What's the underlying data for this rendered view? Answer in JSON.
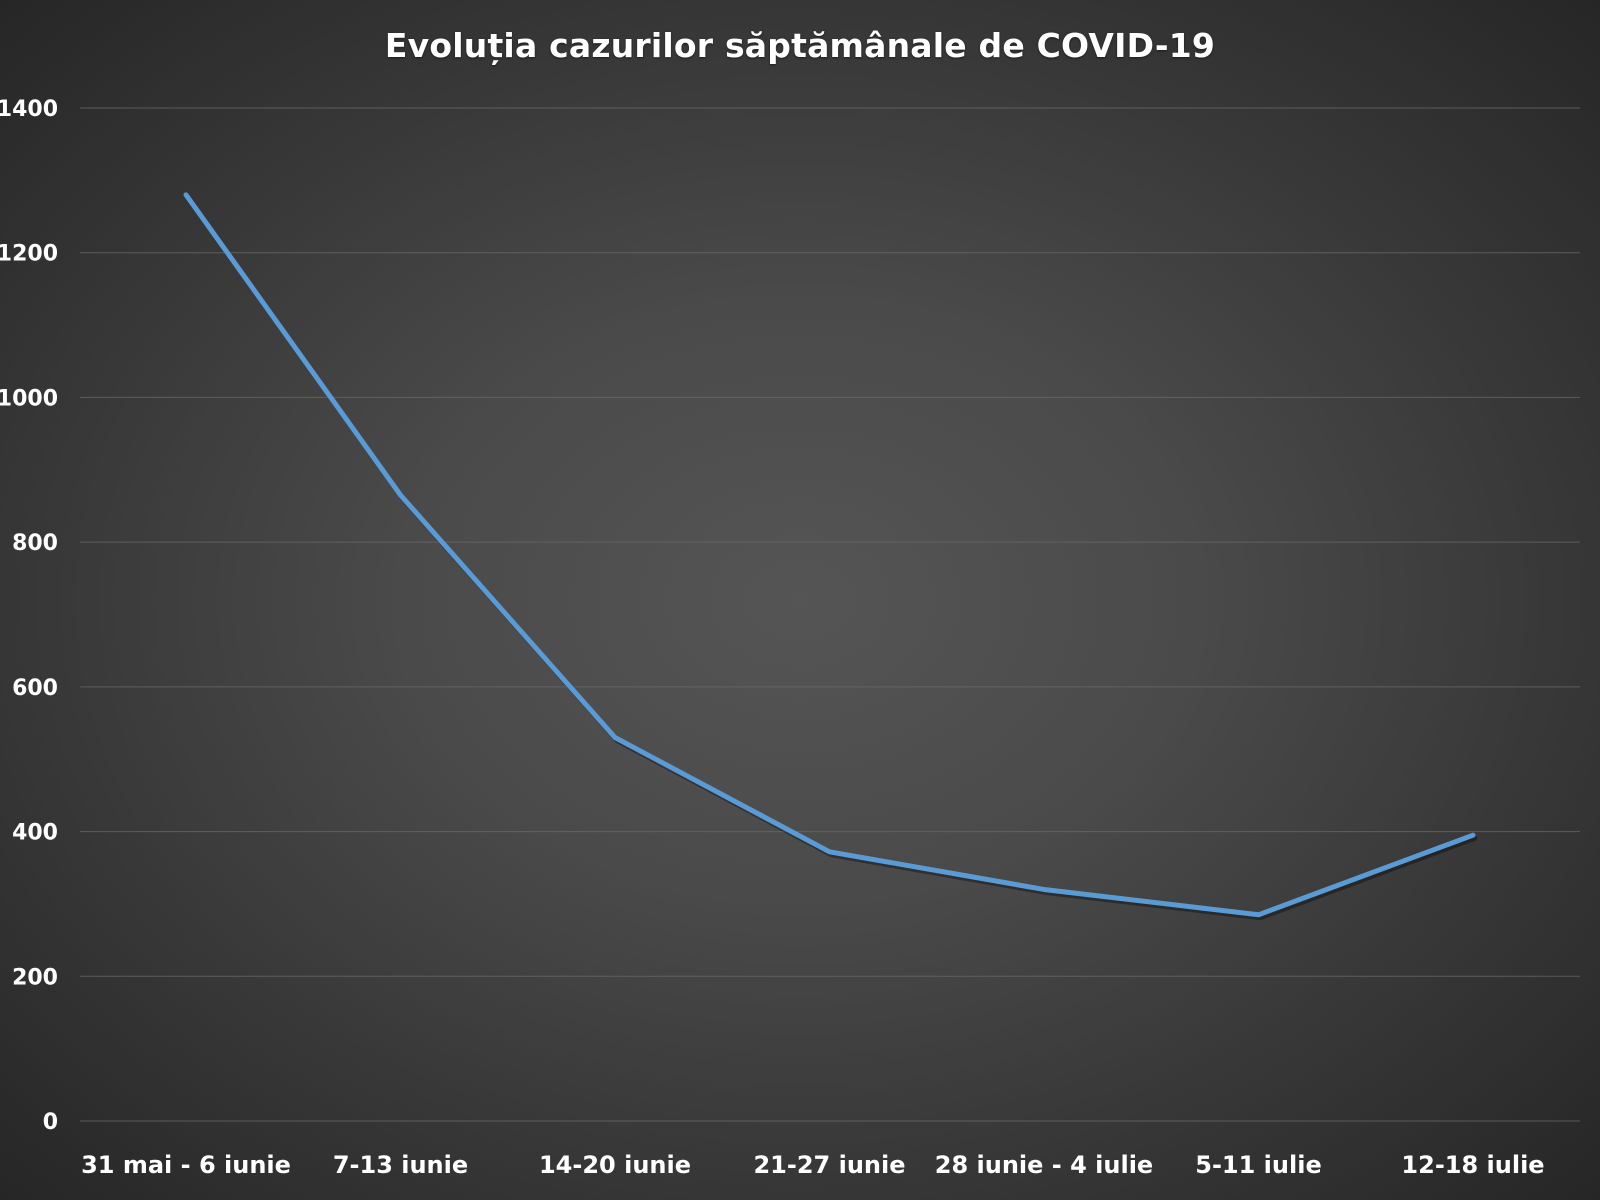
{
  "chart_data": {
    "type": "line",
    "title": "Evoluția cazurilor săptămânale de COVID-19",
    "xlabel": "",
    "ylabel": "",
    "categories": [
      "31 mai - 6 iunie",
      "7-13 iunie",
      "14-20 iunie",
      "21-27 iunie",
      "28 iunie - 4 iulie",
      "5-11 iulie",
      "12-18 iulie"
    ],
    "values": [
      1280,
      865,
      530,
      372,
      320,
      285,
      395
    ],
    "ylim": [
      0,
      1400
    ],
    "yticks": [
      0,
      200,
      400,
      600,
      800,
      1000,
      1200,
      1400
    ],
    "grid": true,
    "legend": "none",
    "line_color": "#5b9bd5"
  }
}
